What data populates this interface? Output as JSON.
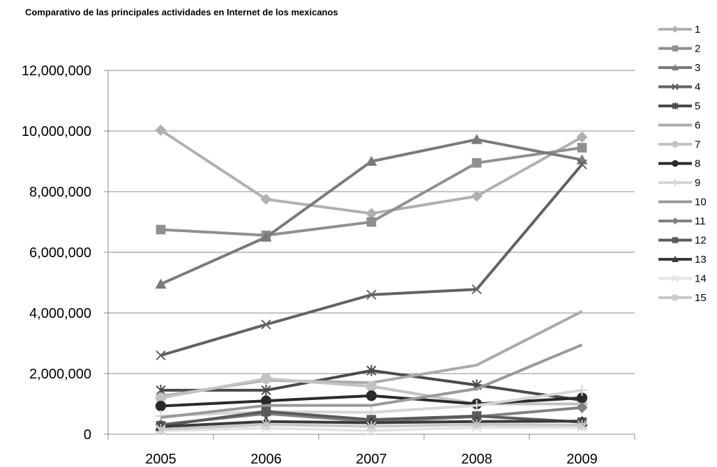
{
  "chart_data": {
    "type": "line",
    "title": "Comparativo de las principales actividades en Internet de los mexicanos",
    "xlabel": "",
    "ylabel": "",
    "categories": [
      "2005",
      "2006",
      "2007",
      "2008",
      "2009"
    ],
    "ylim": [
      0,
      12000000
    ],
    "yticks": [
      0,
      2000000,
      4000000,
      6000000,
      8000000,
      10000000,
      12000000
    ],
    "ytick_labels": [
      "0",
      "2,000,000",
      "4,000,000",
      "6,000,000",
      "8,000,000",
      "10,000,000",
      "12,000,000"
    ],
    "grid": true,
    "legend_position": "right",
    "series": [
      {
        "name": "1",
        "color": "#b0b0b0",
        "marker": "diamond",
        "values": [
          10030000,
          7750000,
          7280000,
          7850000,
          9800000
        ]
      },
      {
        "name": "2",
        "color": "#8f8f8f",
        "marker": "square",
        "values": [
          6750000,
          6560000,
          7000000,
          8950000,
          9450000
        ]
      },
      {
        "name": "3",
        "color": "#7a7a7a",
        "marker": "triangle",
        "values": [
          4950000,
          6500000,
          9000000,
          9720000,
          9050000
        ]
      },
      {
        "name": "4",
        "color": "#626262",
        "marker": "x",
        "values": [
          2600000,
          3620000,
          4600000,
          4780000,
          8900000
        ]
      },
      {
        "name": "5",
        "color": "#4a4a4a",
        "marker": "star",
        "values": [
          1450000,
          1450000,
          2100000,
          1620000,
          1120000
        ]
      },
      {
        "name": "6",
        "color": "#aaaaaa",
        "marker": "none",
        "values": [
          1250000,
          1780000,
          1700000,
          2280000,
          4050000
        ]
      },
      {
        "name": "7",
        "color": "#c3c3c3",
        "marker": "circle",
        "values": [
          1200000,
          1830000,
          1580000,
          1000000,
          1000000
        ]
      },
      {
        "name": "8",
        "color": "#2a2a2a",
        "marker": "circle",
        "values": [
          930000,
          1100000,
          1270000,
          1000000,
          1200000
        ]
      },
      {
        "name": "9",
        "color": "#d6d6d6",
        "marker": "plus",
        "values": [
          600000,
          750000,
          720000,
          950000,
          1450000
        ]
      },
      {
        "name": "10",
        "color": "#999999",
        "marker": "none",
        "values": [
          550000,
          950000,
          950000,
          1500000,
          2950000
        ]
      },
      {
        "name": "11",
        "color": "#818181",
        "marker": "diamond",
        "values": [
          320000,
          680000,
          420000,
          580000,
          880000
        ]
      },
      {
        "name": "12",
        "color": "#5a5a5a",
        "marker": "square",
        "values": [
          280000,
          750000,
          480000,
          600000,
          400000
        ]
      },
      {
        "name": "13",
        "color": "#3a3a3a",
        "marker": "triangle",
        "values": [
          250000,
          420000,
          380000,
          420000,
          430000
        ]
      },
      {
        "name": "14",
        "color": "#e4e4e4",
        "marker": "x",
        "values": [
          120000,
          200000,
          120000,
          220000,
          220000
        ]
      },
      {
        "name": "15",
        "color": "#c8c8c8",
        "marker": "star",
        "values": [
          160000,
          320000,
          260000,
          320000,
          300000
        ]
      }
    ]
  }
}
